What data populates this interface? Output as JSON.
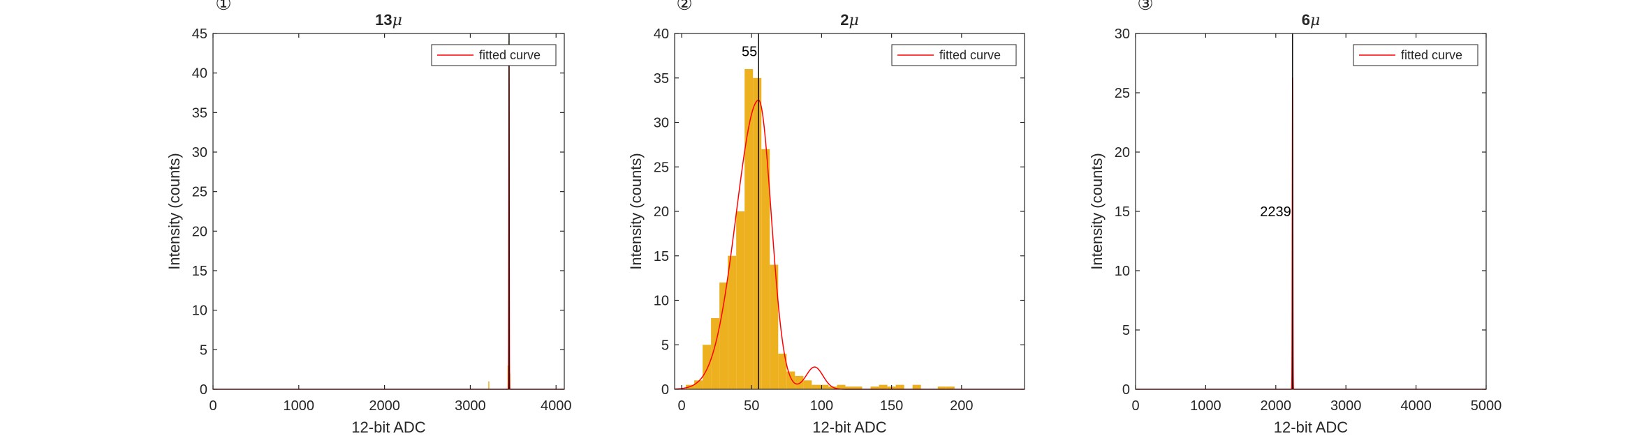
{
  "colors": {
    "histogram": "#EDB120",
    "fitted_curve": "#FF0000",
    "marker_line": "#000000",
    "axes": "#262626"
  },
  "chart_data": [
    {
      "type": "histogram",
      "marker": "①",
      "title": "13",
      "title_symbol": "μ",
      "xlabel": "12-bit ADC",
      "ylabel": "Intensity (counts)",
      "xlim": [
        0,
        4096
      ],
      "ylim": [
        0,
        45
      ],
      "xticks": [
        0,
        1000,
        2000,
        3000,
        4000
      ],
      "yticks": [
        0,
        5,
        10,
        15,
        20,
        25,
        30,
        35,
        40,
        45
      ],
      "grid": false,
      "legend": {
        "entries": [
          "fitted curve"
        ],
        "position": "top-right"
      },
      "bin_width": 10,
      "bars": [
        {
          "x": 3215,
          "count": 1
        },
        {
          "x": 3440,
          "count": 3
        },
        {
          "x": 3450,
          "count": 44
        },
        {
          "x": 3460,
          "count": 2
        }
      ],
      "fit": {
        "mu": 3452,
        "sigma": 2.5,
        "amplitude": 41,
        "secondary": null
      },
      "vline_x": 3452,
      "annotation": null
    },
    {
      "type": "histogram",
      "marker": "②",
      "title": "2",
      "title_symbol": "μ",
      "xlabel": "12-bit ADC",
      "ylabel": "Intensity (counts)",
      "xlim": [
        -5,
        245
      ],
      "ylim": [
        0,
        40
      ],
      "xticks": [
        0,
        50,
        100,
        150,
        200
      ],
      "yticks": [
        0,
        5,
        10,
        15,
        20,
        25,
        30,
        35,
        40
      ],
      "grid": false,
      "legend": {
        "entries": [
          "fitted curve"
        ],
        "position": "top-right"
      },
      "bin_width": 6,
      "bars": [
        {
          "x": 6,
          "count": 0.5
        },
        {
          "x": 12,
          "count": 1
        },
        {
          "x": 18,
          "count": 5
        },
        {
          "x": 24,
          "count": 8
        },
        {
          "x": 30,
          "count": 12
        },
        {
          "x": 36,
          "count": 15
        },
        {
          "x": 42,
          "count": 20
        },
        {
          "x": 48,
          "count": 36
        },
        {
          "x": 54,
          "count": 35
        },
        {
          "x": 60,
          "count": 27
        },
        {
          "x": 66,
          "count": 14
        },
        {
          "x": 72,
          "count": 4
        },
        {
          "x": 78,
          "count": 2
        },
        {
          "x": 84,
          "count": 1.5
        },
        {
          "x": 90,
          "count": 1
        },
        {
          "x": 96,
          "count": 0.5
        },
        {
          "x": 102,
          "count": 0.5
        },
        {
          "x": 108,
          "count": 0.3
        },
        {
          "x": 114,
          "count": 0.5
        },
        {
          "x": 120,
          "count": 0.3
        },
        {
          "x": 126,
          "count": 0.3
        },
        {
          "x": 138,
          "count": 0.3
        },
        {
          "x": 144,
          "count": 0.5
        },
        {
          "x": 150,
          "count": 0.3
        },
        {
          "x": 156,
          "count": 0.5
        },
        {
          "x": 168,
          "count": 0.5
        },
        {
          "x": 186,
          "count": 0.3
        },
        {
          "x": 192,
          "count": 0.3
        }
      ],
      "fit": {
        "mu": 55,
        "sigma_left": 16,
        "sigma_right": 9,
        "amplitude": 32.5,
        "secondary": {
          "mu": 95,
          "sigma": 6,
          "amplitude": 2.5
        }
      },
      "vline_x": 55,
      "annotation": {
        "text": "55",
        "x": 55,
        "y": 38
      }
    },
    {
      "type": "histogram",
      "marker": "③",
      "title": "6",
      "title_symbol": "μ",
      "xlabel": "12-bit ADC",
      "ylabel": "Intensity (counts)",
      "xlim": [
        0,
        5000
      ],
      "ylim": [
        0,
        30
      ],
      "xticks": [
        0,
        1000,
        2000,
        3000,
        4000,
        5000
      ],
      "yticks": [
        0,
        5,
        10,
        15,
        20,
        25,
        30
      ],
      "grid": false,
      "legend": {
        "entries": [
          "fitted curve"
        ],
        "position": "top-right"
      },
      "bin_width": 12,
      "bars": [
        {
          "x": 2233,
          "count": 2
        },
        {
          "x": 2239,
          "count": 15
        },
        {
          "x": 2245,
          "count": 2
        }
      ],
      "fit": {
        "mu": 2239,
        "sigma": 4,
        "amplitude": 26.3,
        "secondary": null
      },
      "vline_x": 2239,
      "annotation": {
        "text": "2239",
        "x": 2239,
        "y": 15
      }
    }
  ]
}
